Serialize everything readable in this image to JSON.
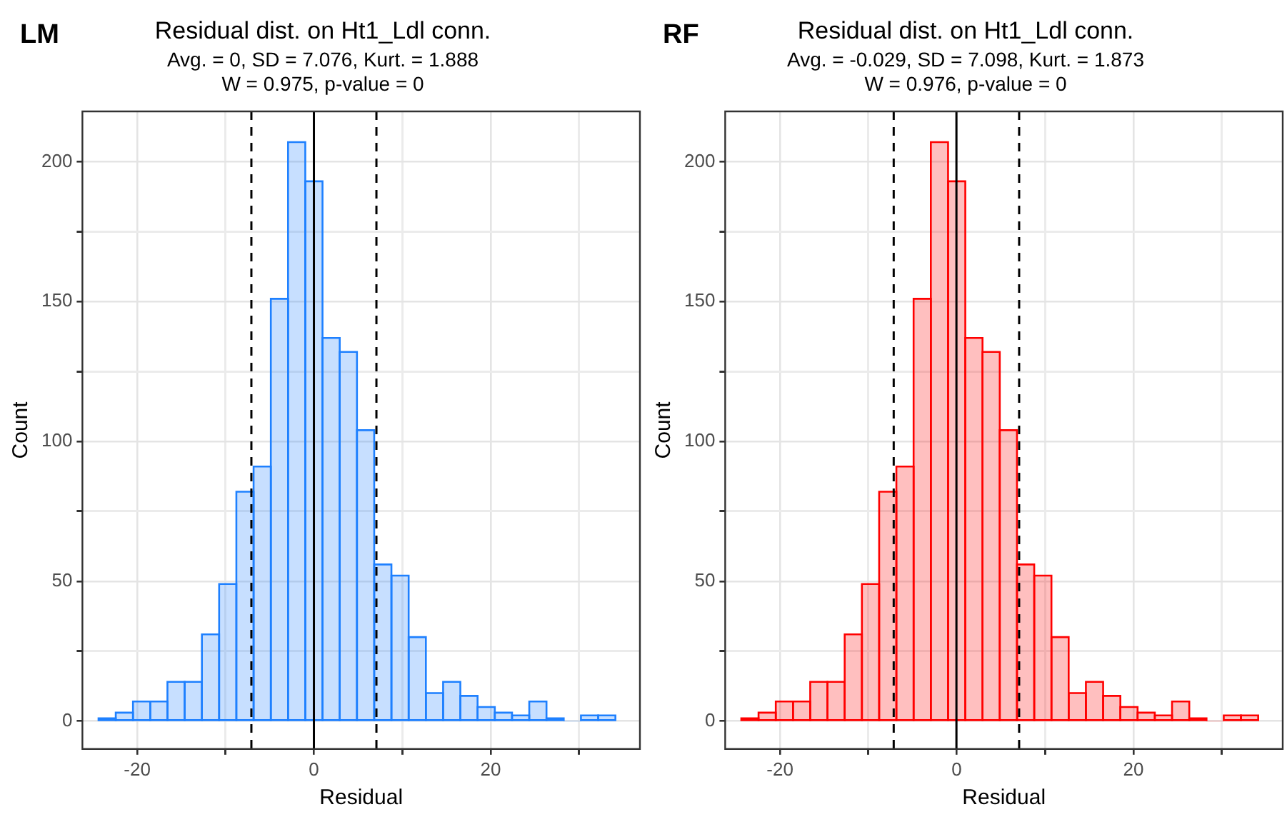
{
  "chart_data": [
    {
      "type": "histogram",
      "title": "Residual dist. on Ht1_Ldl conn.",
      "subtitle": "Avg. = 0, SD = 7.076, Kurt. = 1.888\nW = 0.975, p-value = 0",
      "annotations": [
        "LM"
      ],
      "xlabel": "Residual",
      "ylabel": "Count",
      "bins": [
        -24.375,
        -22.425,
        -20.475,
        -18.525,
        -16.575,
        -14.625,
        -12.675,
        -10.725,
        -8.775,
        -6.825,
        -4.875,
        -2.925,
        -0.975,
        0.975,
        2.925,
        4.875,
        6.825,
        8.775,
        10.725,
        12.675,
        14.625,
        16.575,
        18.525,
        20.475,
        22.425,
        24.375,
        26.325,
        28.275,
        30.225,
        32.175,
        34.125
      ],
      "values": [
        1,
        3,
        7,
        7,
        14,
        14,
        31,
        49,
        82,
        91,
        151,
        207,
        193,
        137,
        132,
        104,
        56,
        52,
        30,
        10,
        14,
        9,
        5,
        3,
        2,
        7,
        1,
        0,
        2,
        2
      ],
      "color": "#1e80ff",
      "xlim": [
        -26.2,
        36.9
      ],
      "ylim": [
        -10,
        218
      ],
      "xticks": [
        -20,
        {
          "value": -10,
          "label": null
        },
        0,
        {
          "value": 10,
          "label": null
        },
        20,
        {
          "value": 30,
          "label": null
        }
      ],
      "yticks": [
        0,
        {
          "value": 25,
          "label": null
        },
        50,
        {
          "value": 75,
          "label": null
        },
        100,
        {
          "value": 125,
          "label": null
        },
        150,
        {
          "value": 175,
          "label": null
        },
        200
      ],
      "grid": true,
      "legend": false,
      "ref_lines": [
        {
          "axis": "x",
          "value": 0,
          "line_style": "solid",
          "color": "#000000"
        },
        {
          "axis": "x",
          "value": -7.076,
          "line_style": "dashed",
          "color": "#000000"
        },
        {
          "axis": "x",
          "value": 7.076,
          "line_style": "dashed",
          "color": "#000000"
        }
      ]
    },
    {
      "type": "histogram",
      "title": "Residual dist. on Ht1_Ldl conn.",
      "subtitle": "Avg. = -0.029, SD = 7.098, Kurt. = 1.873\nW = 0.976, p-value = 0",
      "annotations": [
        "RF"
      ],
      "xlabel": "Residual",
      "ylabel": "Count",
      "bins": [
        -24.375,
        -22.425,
        -20.475,
        -18.525,
        -16.575,
        -14.625,
        -12.675,
        -10.725,
        -8.775,
        -6.825,
        -4.875,
        -2.925,
        -0.975,
        0.975,
        2.925,
        4.875,
        6.825,
        8.775,
        10.725,
        12.675,
        14.625,
        16.575,
        18.525,
        20.475,
        22.425,
        24.375,
        26.325,
        28.275,
        30.225,
        32.175,
        34.125
      ],
      "values": [
        1,
        3,
        7,
        7,
        14,
        14,
        31,
        49,
        82,
        91,
        151,
        207,
        193,
        137,
        132,
        104,
        56,
        52,
        30,
        10,
        14,
        9,
        5,
        3,
        2,
        7,
        1,
        0,
        2,
        2
      ],
      "color": "#ff0000",
      "xlim": [
        -26.2,
        36.9
      ],
      "ylim": [
        -10,
        218
      ],
      "xticks": [
        -20,
        {
          "value": -10,
          "label": null
        },
        0,
        {
          "value": 10,
          "label": null
        },
        20,
        {
          "value": 30,
          "label": null
        }
      ],
      "yticks": [
        0,
        {
          "value": 25,
          "label": null
        },
        50,
        {
          "value": 75,
          "label": null
        },
        100,
        {
          "value": 125,
          "label": null
        },
        150,
        {
          "value": 175,
          "label": null
        },
        200
      ],
      "grid": true,
      "legend": false,
      "ref_lines": [
        {
          "axis": "x",
          "value": -0.029,
          "line_style": "solid",
          "color": "#000000"
        },
        {
          "axis": "x",
          "value": -7.127,
          "line_style": "dashed",
          "color": "#000000"
        },
        {
          "axis": "x",
          "value": 7.069,
          "line_style": "dashed",
          "color": "#000000"
        }
      ]
    }
  ]
}
